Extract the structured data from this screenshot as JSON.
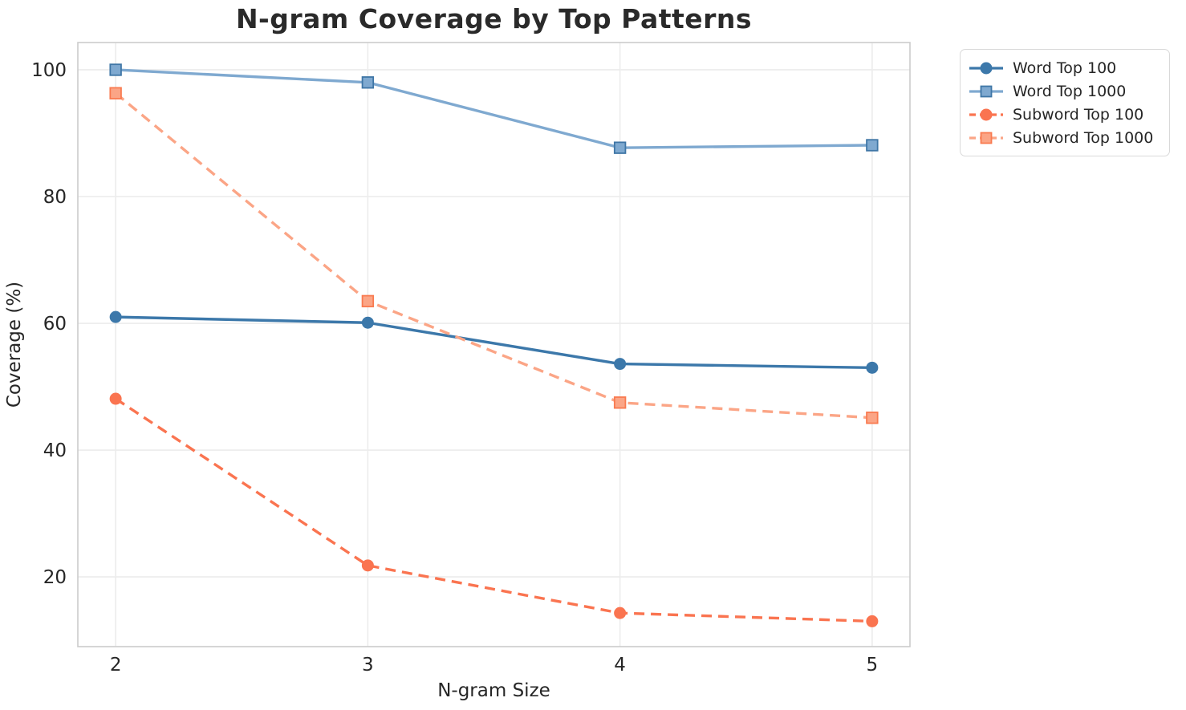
{
  "chart_data": {
    "type": "line",
    "title": "N-gram Coverage by Top Patterns",
    "xlabel": "N-gram Size",
    "ylabel": "Coverage (%)",
    "x": [
      2,
      3,
      4,
      5
    ],
    "xticks": [
      "2",
      "3",
      "4",
      "5"
    ],
    "yticks": [
      20,
      40,
      60,
      80,
      100
    ],
    "xlim": [
      1.85,
      5.15
    ],
    "ylim": [
      9,
      104.3
    ],
    "grid": true,
    "legend_position": "outside upper right",
    "series": [
      {
        "name": "Word Top 100",
        "values": [
          61.0,
          60.1,
          53.6,
          53.0
        ],
        "color": "#3c78aa",
        "marker": "circle",
        "marker_edge": "#3c78aa",
        "linestyle": "solid"
      },
      {
        "name": "Word Top 1000",
        "values": [
          100.0,
          98.0,
          87.7,
          88.1
        ],
        "color": "#7fa9d0",
        "marker": "square",
        "marker_edge": "#3f76a6",
        "linestyle": "solid"
      },
      {
        "name": "Subword Top 100",
        "values": [
          48.1,
          21.8,
          14.3,
          13.0
        ],
        "color": "#fa7450",
        "marker": "circle",
        "marker_edge": "#fa7450",
        "linestyle": "dashed"
      },
      {
        "name": "Subword Top 1000",
        "values": [
          96.3,
          63.5,
          47.5,
          45.1
        ],
        "color": "#fba586",
        "marker": "square",
        "marker_edge": "#f97a50",
        "linestyle": "dashed"
      }
    ],
    "style": {
      "grid_color": "#ececec",
      "spine_color": "#cccccc",
      "tick_color": "#262626",
      "title_color": "#2a2a2a"
    }
  }
}
